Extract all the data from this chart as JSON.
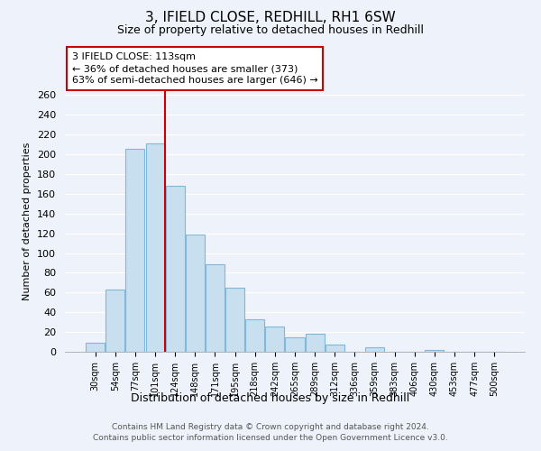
{
  "title": "3, IFIELD CLOSE, REDHILL, RH1 6SW",
  "subtitle": "Size of property relative to detached houses in Redhill",
  "xlabel": "Distribution of detached houses by size in Redhill",
  "ylabel": "Number of detached properties",
  "bin_labels": [
    "30sqm",
    "54sqm",
    "77sqm",
    "101sqm",
    "124sqm",
    "148sqm",
    "171sqm",
    "195sqm",
    "218sqm",
    "242sqm",
    "265sqm",
    "289sqm",
    "312sqm",
    "336sqm",
    "359sqm",
    "383sqm",
    "406sqm",
    "430sqm",
    "453sqm",
    "477sqm",
    "500sqm"
  ],
  "bar_heights": [
    9,
    63,
    206,
    211,
    168,
    119,
    89,
    65,
    33,
    26,
    15,
    18,
    7,
    0,
    5,
    0,
    0,
    2,
    0,
    0,
    0
  ],
  "bar_color": "#c8dff0",
  "bar_edge_color": "#7fb8d8",
  "vline_color": "#cc0000",
  "annotation_text": "3 IFIELD CLOSE: 113sqm\n← 36% of detached houses are smaller (373)\n63% of semi-detached houses are larger (646) →",
  "ylim": [
    0,
    265
  ],
  "yticks": [
    0,
    20,
    40,
    60,
    80,
    100,
    120,
    140,
    160,
    180,
    200,
    220,
    240,
    260
  ],
  "footer_text": "Contains HM Land Registry data © Crown copyright and database right 2024.\nContains public sector information licensed under the Open Government Licence v3.0.",
  "bg_color": "#eef2fa"
}
